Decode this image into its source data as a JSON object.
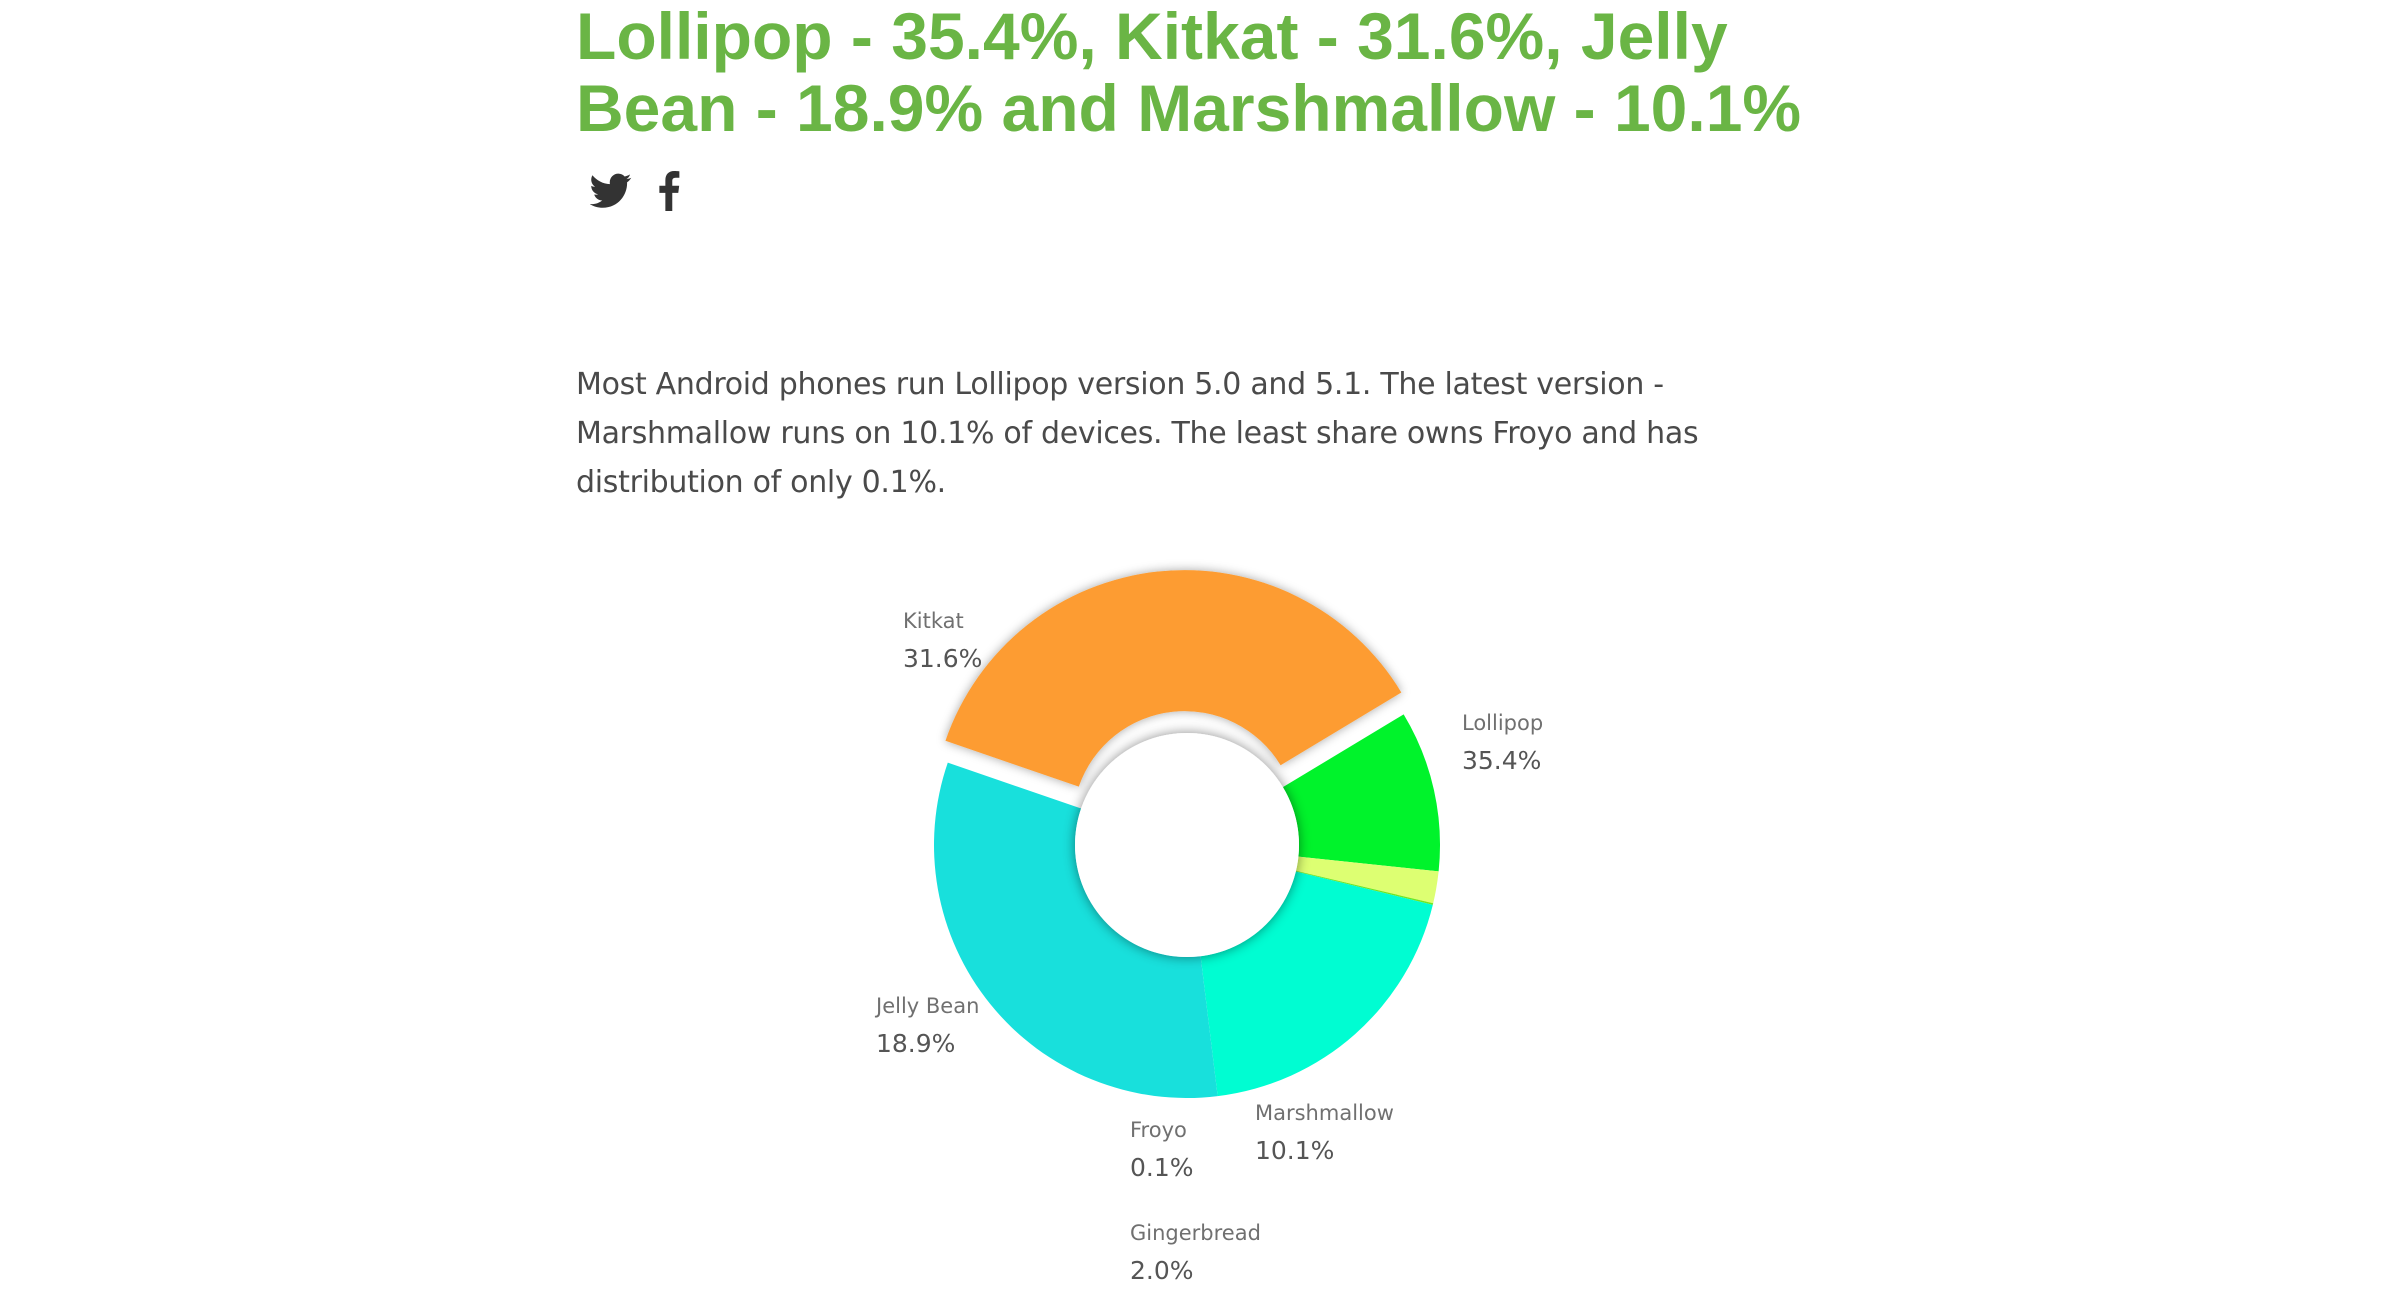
{
  "article": {
    "headline": "Lollipop - 35.4%, Kitkat - 31.6%, Jelly Bean - 18.9% and Marshmallow - 10.1%",
    "summary": "Most Android phones run Lollipop version 5.0 and 5.1. The latest version - Marshmallow runs on 10.1% of devices. The least share owns Froyo and has distribution of only 0.1%."
  },
  "share": {
    "icons": [
      "twitter-icon",
      "facebook-icon"
    ],
    "icon_color": "#333333"
  },
  "colors": {
    "headline": "#6ab545",
    "body_text": "#4a4a4a"
  },
  "chart_data": {
    "type": "pie",
    "variant": "donut",
    "exploded_slice": "Lollipop",
    "labels": [
      "Lollipop",
      "Marshmallow",
      "Gingerbread",
      "Froyo",
      "Jelly Bean",
      "Kitkat"
    ],
    "values": [
      35.4,
      10.1,
      2.0,
      0.1,
      18.9,
      31.6
    ],
    "value_labels": [
      "35.4%",
      "10.1%",
      "2.0%",
      "0.1%",
      "18.9%",
      "31.6%"
    ],
    "colors": [
      "#fd9c30",
      "#00f32b",
      "#ddff72",
      "#71e821",
      "#00fdd2",
      "#18e0dc"
    ]
  }
}
